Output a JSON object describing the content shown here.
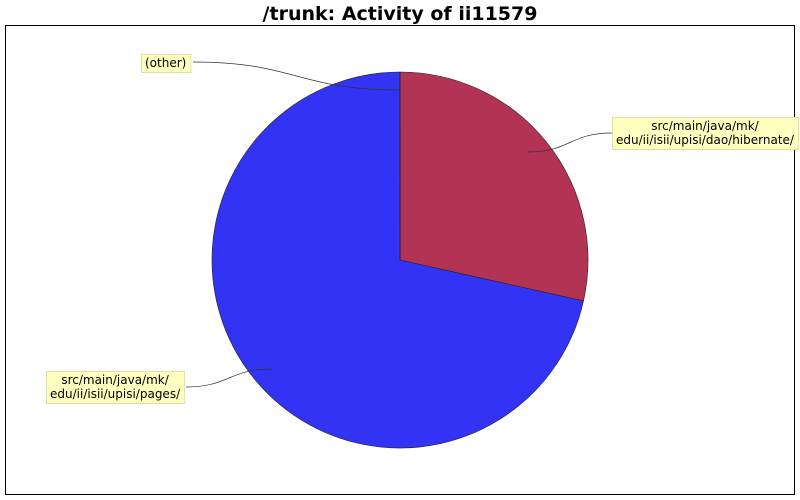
{
  "chart_data": {
    "type": "pie",
    "title": "/trunk: Activity of ii11579",
    "slices": [
      {
        "label": "src/main/java/mk/edu/ii/isii/upisi/dao/hibernate/",
        "label_lines": [
          "src/main/java/mk/",
          "edu/ii/isii/upisi/dao/hibernate/"
        ],
        "value": 28.5,
        "color": "#b33355"
      },
      {
        "label": "src/main/java/mk/edu/ii/isii/upisi/pages/",
        "label_lines": [
          "src/main/java/mk/",
          "edu/ii/isii/upisi/pages/"
        ],
        "value": 71.5,
        "color": "#3333f5"
      },
      {
        "label": "(other)",
        "label_lines": [
          "(other)"
        ],
        "value": 0.01,
        "color": "#3333f5"
      }
    ],
    "label_background": "#ffffc0",
    "label_border": "#e0e0a0",
    "frame_color": "#000000"
  }
}
